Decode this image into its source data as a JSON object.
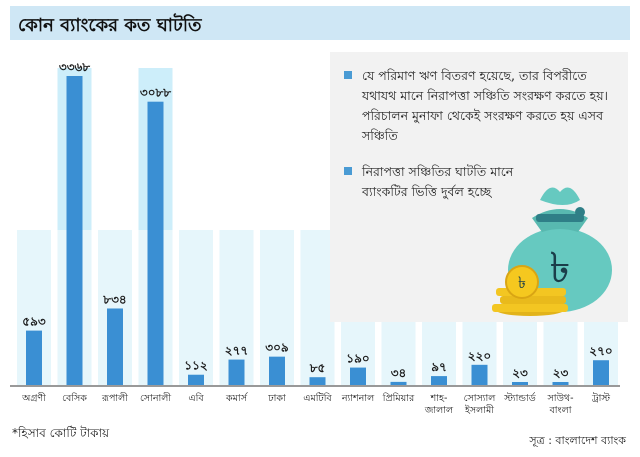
{
  "header": {
    "title": "কোন ব্যাংকের কত ঘাটতি"
  },
  "chart_data": {
    "type": "bar",
    "title": "কোন ব্যাংকের কত ঘাটতি",
    "categories": [
      [
        "অগ্রণী"
      ],
      [
        "বেসিক"
      ],
      [
        "রূপালী"
      ],
      [
        "সোনালী"
      ],
      [
        "এবি"
      ],
      [
        "কমার্স"
      ],
      [
        "ঢাকা"
      ],
      [
        "এমটিবি"
      ],
      [
        "ন্যাশনাল"
      ],
      [
        "প্রিমিয়ার"
      ],
      [
        "শাহ-",
        "জালাল"
      ],
      [
        "সোস্যাল",
        "ইসলামী"
      ],
      [
        "স্ট্যান্ডার্ড"
      ],
      [
        "সাউথ-",
        "বাংলা"
      ],
      [
        "ট্রাস্ট"
      ]
    ],
    "values": [
      593,
      3368,
      834,
      3088,
      112,
      277,
      309,
      85,
      190,
      34,
      97,
      220,
      23,
      23,
      270
    ],
    "value_labels": [
      "৫৯৩",
      "৩৩৬৮",
      "৮৩৪",
      "৩০৮৮",
      "১১২",
      "২৭৭",
      "৩০৯",
      "৮৫",
      "১৯০",
      "৩৪",
      "৯৭",
      "২২০",
      "২৩",
      "২৩",
      "২৭০"
    ],
    "unit_note": "*হিসাব কোটি টাকায়",
    "bar_color": "#3a8fd3",
    "bar_bg_color": "#e6f6fb",
    "bar_bg_upper_color": "#cdeefa"
  },
  "notes": [
    "যে পরিমাণ ঋণ বিতরণ হয়েছে, তার বিপরীতে যথাযথ মানে নিরাপত্তা সঞ্চিতি সংরক্ষণ করতে হয়। পরিচালন মুনাফা থেকেই সংরক্ষণ করতে হয় এসব সঞ্চিতি",
    "নিরাপত্তা সঞ্চিতির ঘাটতি মানে ব্যাংকটির ভিত্তি দুর্বল হচ্ছে"
  ],
  "footnote": "*হিসাব কোটি টাকায়",
  "source": "সূত্র : বাংলাদেশ ব্যাংক",
  "bag_symbol": "৳",
  "icons": {
    "money_bag": "money-bag-icon"
  }
}
